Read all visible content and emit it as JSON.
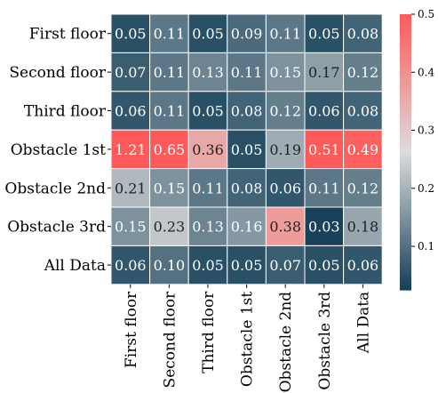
{
  "chart_data": {
    "type": "heatmap",
    "rows": [
      "First floor",
      "Second floor",
      "Third floor",
      "Obstacle 1st",
      "Obstacle 2nd",
      "Obstacle 3rd",
      "All Data"
    ],
    "columns": [
      "First floor",
      "Second floor",
      "Third floor",
      "Obstacle 1st",
      "Obstacle 2nd",
      "Obstacle 3rd",
      "All Data"
    ],
    "values": [
      [
        0.05,
        0.11,
        0.05,
        0.09,
        0.11,
        0.05,
        0.08
      ],
      [
        0.07,
        0.11,
        0.13,
        0.11,
        0.15,
        0.17,
        0.12
      ],
      [
        0.06,
        0.11,
        0.05,
        0.08,
        0.12,
        0.06,
        0.08
      ],
      [
        1.21,
        0.65,
        0.36,
        0.05,
        0.19,
        0.51,
        0.49
      ],
      [
        0.21,
        0.15,
        0.11,
        0.08,
        0.06,
        0.11,
        0.12
      ],
      [
        0.15,
        0.23,
        0.13,
        0.16,
        0.38,
        0.03,
        0.18
      ],
      [
        0.06,
        0.1,
        0.05,
        0.05,
        0.07,
        0.05,
        0.06
      ]
    ],
    "value_labels": [
      [
        "0.05",
        "0.11",
        "0.05",
        "0.09",
        "0.11",
        "0.05",
        "0.08"
      ],
      [
        "0.07",
        "0.11",
        "0.13",
        "0.11",
        "0.15",
        "0.17",
        "0.12"
      ],
      [
        "0.06",
        "0.11",
        "0.05",
        "0.08",
        "0.12",
        "0.06",
        "0.08"
      ],
      [
        "1.21",
        "0.65",
        "0.36",
        "0.05",
        "0.19",
        "0.51",
        "0.49"
      ],
      [
        "0.21",
        "0.15",
        "0.11",
        "0.08",
        "0.06",
        "0.11",
        "0.12"
      ],
      [
        "0.15",
        "0.23",
        "0.13",
        "0.16",
        "0.38",
        "0.03",
        "0.18"
      ],
      [
        "0.06",
        "0.10",
        "0.05",
        "0.05",
        "0.07",
        "0.05",
        "0.06"
      ]
    ],
    "colorbar": {
      "range": [
        0.025,
        0.5
      ],
      "ticks": [
        0.1,
        0.2,
        0.3,
        0.4,
        0.5
      ],
      "tick_labels": [
        "0.1",
        "0.2",
        "0.3",
        "0.4",
        "0.5"
      ],
      "colors": [
        "#153f57",
        "#dcdcdc",
        "#ff5a5a"
      ]
    },
    "title": "",
    "xlabel": "",
    "ylabel": "",
    "grid": false,
    "legend": "colorbar-right"
  }
}
